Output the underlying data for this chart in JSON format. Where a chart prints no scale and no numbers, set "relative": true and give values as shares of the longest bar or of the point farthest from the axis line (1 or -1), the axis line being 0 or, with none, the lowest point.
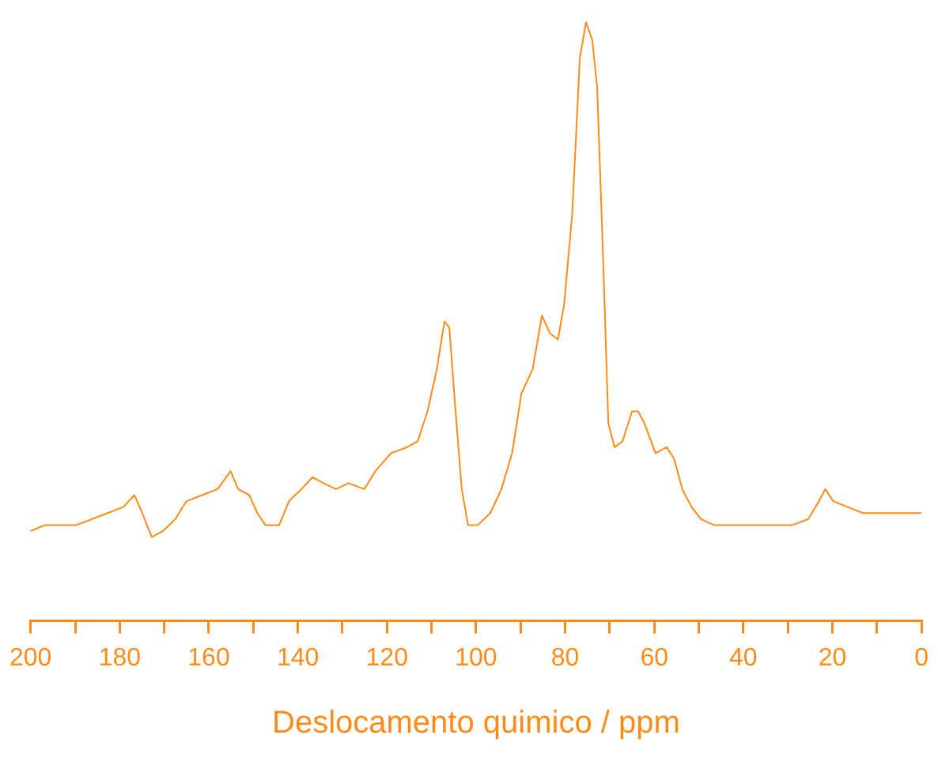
{
  "chart_data": {
    "type": "line",
    "xlabel": "Deslocamento quimico / ppm",
    "relative": true,
    "color": "#ff8c1a",
    "marker": "none",
    "tick_labels": "x",
    "xlim": [
      200,
      0
    ],
    "xticks": [
      200,
      {
        "value": 190,
        "label": null
      },
      180,
      {
        "value": 170,
        "label": null
      },
      160,
      {
        "value": 150,
        "label": null
      },
      140,
      {
        "value": 130,
        "label": null
      },
      120,
      {
        "value": 110,
        "label": null
      },
      100,
      {
        "value": 90,
        "label": null
      },
      80,
      {
        "value": 70,
        "label": null
      },
      60,
      {
        "value": 50,
        "label": null
      },
      40,
      {
        "value": 30,
        "label": null
      },
      20,
      {
        "value": 10,
        "label": null
      },
      0
    ],
    "x": [
      200,
      196.8,
      193.3,
      189.8,
      186.2,
      182.7,
      179.2,
      176.7,
      174.9,
      173.9,
      172.8,
      170.3,
      167.5,
      165.0,
      161.5,
      158.0,
      155.1,
      153.4,
      150.9,
      149.1,
      147.3,
      144.2,
      142.0,
      139.2,
      136.7,
      134.3,
      131.4,
      128.6,
      125.1,
      122.6,
      119.1,
      115.5,
      113.1,
      110.9,
      108.8,
      107.1,
      106.0,
      104.6,
      103.2,
      101.8,
      99.6,
      96.8,
      94.3,
      91.9,
      89.8,
      87.3,
      85.2,
      83.4,
      81.6,
      80.2,
      78.4,
      76.7,
      75.3,
      73.9,
      72.8,
      71.4,
      70.3,
      68.9,
      67.1,
      65.0,
      63.6,
      62.2,
      59.7,
      57.2,
      55.5,
      53.7,
      51.6,
      49.5,
      46.6,
      43.1,
      39.6,
      36.0,
      32.5,
      29.0,
      25.4,
      23.0,
      21.6,
      19.8,
      16.6,
      13.1,
      9.5,
      6.0,
      2.5,
      0
    ],
    "values": [
      0.15,
      0.16,
      0.16,
      0.16,
      0.17,
      0.18,
      0.19,
      0.21,
      0.18,
      0.16,
      0.14,
      0.15,
      0.17,
      0.2,
      0.21,
      0.22,
      0.25,
      0.22,
      0.21,
      0.18,
      0.16,
      0.16,
      0.2,
      0.22,
      0.24,
      0.23,
      0.22,
      0.23,
      0.22,
      0.25,
      0.28,
      0.29,
      0.3,
      0.35,
      0.42,
      0.5,
      0.49,
      0.35,
      0.22,
      0.16,
      0.16,
      0.18,
      0.22,
      0.28,
      0.38,
      0.42,
      0.51,
      0.48,
      0.47,
      0.53,
      0.68,
      0.94,
      1,
      0.97,
      0.89,
      0.59,
      0.33,
      0.29,
      0.3,
      0.35,
      0.35,
      0.33,
      0.28,
      0.29,
      0.27,
      0.22,
      0.19,
      0.17,
      0.16,
      0.16,
      0.16,
      0.16,
      0.16,
      0.16,
      0.17,
      0.2,
      0.22,
      0.2,
      0.19,
      0.18,
      0.18,
      0.18,
      0.18,
      0.18
    ]
  }
}
